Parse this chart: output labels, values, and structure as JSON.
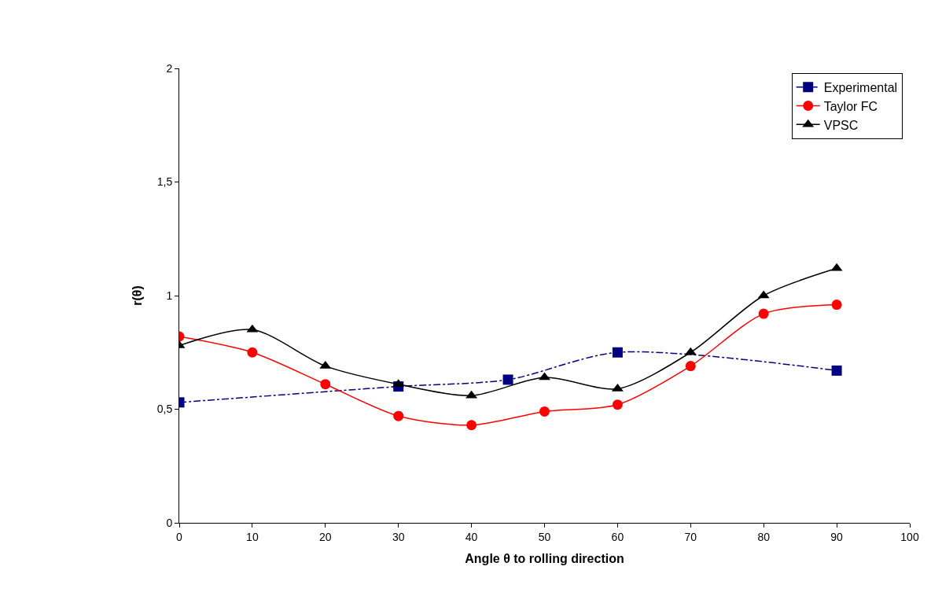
{
  "chart_data": {
    "type": "line",
    "xlabel": "Angle θ to rolling direction",
    "ylabel": "r(θ)",
    "xlim": [
      0,
      100
    ],
    "xticks": [
      0,
      10,
      20,
      30,
      40,
      50,
      60,
      70,
      80,
      90,
      100
    ],
    "ylim": [
      0,
      2
    ],
    "yticks": [
      0,
      {
        "value": 0.5,
        "label": "0,5"
      },
      1,
      {
        "value": 1.5,
        "label": "1,5"
      },
      2
    ],
    "legend": "top right",
    "series": [
      {
        "name": "Experimental",
        "color": "#000080",
        "marker": "square",
        "line_style": "dashed",
        "x": [
          0,
          30,
          45,
          60,
          90
        ],
        "values": [
          0.53,
          0.6,
          0.63,
          0.75,
          0.67
        ]
      },
      {
        "name": "Taylor FC",
        "color": "#ff0000",
        "marker": "circle",
        "line_style": "solid",
        "x": [
          0,
          10,
          20,
          30,
          40,
          50,
          60,
          70,
          80,
          90
        ],
        "values": [
          0.82,
          0.75,
          0.61,
          0.47,
          0.43,
          0.49,
          0.52,
          0.69,
          0.92,
          0.96
        ]
      },
      {
        "name": "VPSC",
        "color": "#000000",
        "marker": "triangle",
        "line_style": "solid",
        "x": [
          0,
          10,
          20,
          30,
          40,
          50,
          60,
          70,
          80,
          90
        ],
        "values": [
          0.78,
          0.85,
          0.69,
          0.61,
          0.56,
          0.64,
          0.59,
          0.75,
          1.0,
          1.12
        ]
      }
    ]
  }
}
